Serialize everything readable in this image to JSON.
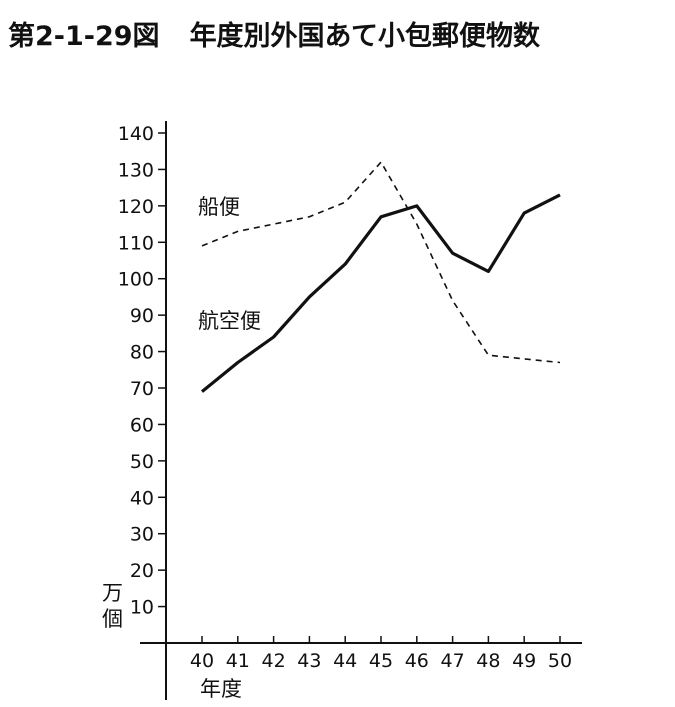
{
  "title": {
    "number": "第2-1-29図",
    "text": "年度別外国あて小包郵便物数"
  },
  "chart_data": {
    "type": "line",
    "x": [
      40,
      41,
      42,
      43,
      44,
      45,
      46,
      47,
      48,
      49,
      50
    ],
    "x_tick_labels": [
      "40",
      "41",
      "42",
      "43",
      "44",
      "45",
      "46",
      "47",
      "48",
      "49",
      "50"
    ],
    "xlabel": "年度",
    "ylabel": "万個",
    "ylim": [
      0,
      140
    ],
    "y_ticks": [
      10,
      20,
      30,
      40,
      50,
      60,
      70,
      80,
      90,
      100,
      110,
      120,
      130,
      140
    ],
    "grid": false,
    "series": [
      {
        "name": "船便",
        "style": "dashed",
        "color": "#111111",
        "values": [
          109,
          113,
          115,
          117,
          121,
          132,
          115,
          94,
          79,
          78,
          77
        ]
      },
      {
        "name": "航空便",
        "style": "solid",
        "color": "#111111",
        "values": [
          69,
          77,
          84,
          95,
          104,
          117,
          120,
          107,
          102,
          118,
          123
        ]
      }
    ]
  }
}
